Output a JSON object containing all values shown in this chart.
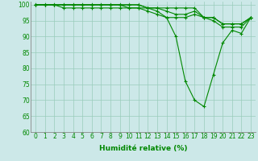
{
  "xlabel": "Humidité relative (%)",
  "xlim": [
    -0.5,
    23.5
  ],
  "ylim": [
    60,
    101
  ],
  "xticks": [
    0,
    1,
    2,
    3,
    4,
    5,
    6,
    7,
    8,
    9,
    10,
    11,
    12,
    13,
    14,
    15,
    16,
    17,
    18,
    19,
    20,
    21,
    22,
    23
  ],
  "yticks": [
    60,
    65,
    70,
    75,
    80,
    85,
    90,
    95,
    100
  ],
  "background_color": "#cce8e8",
  "grid_color": "#99ccbb",
  "line_color": "#008800",
  "series": [
    [
      100,
      100,
      100,
      100,
      100,
      100,
      100,
      100,
      100,
      100,
      100,
      100,
      99,
      99,
      99,
      99,
      99,
      99,
      96,
      95,
      93,
      93,
      93,
      96
    ],
    [
      100,
      100,
      100,
      99,
      99,
      99,
      99,
      99,
      99,
      99,
      99,
      99,
      98,
      97,
      96,
      96,
      96,
      97,
      96,
      96,
      94,
      94,
      94,
      96
    ],
    [
      100,
      100,
      100,
      100,
      100,
      100,
      100,
      100,
      100,
      100,
      100,
      100,
      99,
      99,
      98,
      97,
      97,
      98,
      96,
      96,
      94,
      94,
      94,
      96
    ],
    [
      100,
      100,
      100,
      100,
      100,
      100,
      100,
      100,
      100,
      100,
      99,
      99,
      99,
      98,
      96,
      90,
      76,
      70,
      68,
      78,
      88,
      92,
      91,
      96
    ]
  ],
  "marker": "+",
  "markersize": 3,
  "markeredgewidth": 0.8,
  "linewidth": 0.8,
  "xlabel_fontsize": 6.5,
  "tick_fontsize": 5.5
}
